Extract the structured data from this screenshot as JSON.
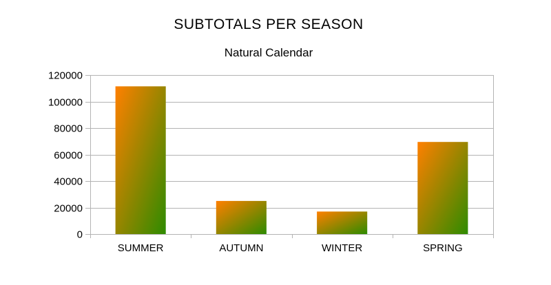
{
  "chart_data": {
    "type": "bar",
    "title": "SUBTOTALS PER SEASON",
    "subtitle": "Natural Calendar",
    "xlabel": "",
    "ylabel": "",
    "categories": [
      "SUMMER",
      "AUTUMN",
      "WINTER",
      "SPRING"
    ],
    "values": [
      111500,
      25000,
      17000,
      69500
    ],
    "ylim": [
      0,
      120000
    ],
    "yticks": [
      0,
      20000,
      40000,
      60000,
      80000,
      100000,
      120000
    ],
    "grid": true,
    "legend": "none",
    "colors": {
      "bar_gradient_top": "#ff8000",
      "bar_gradient_bottom": "#2e8b00",
      "grid": "#b3b3b3",
      "axis": "#b3b3b3"
    }
  }
}
